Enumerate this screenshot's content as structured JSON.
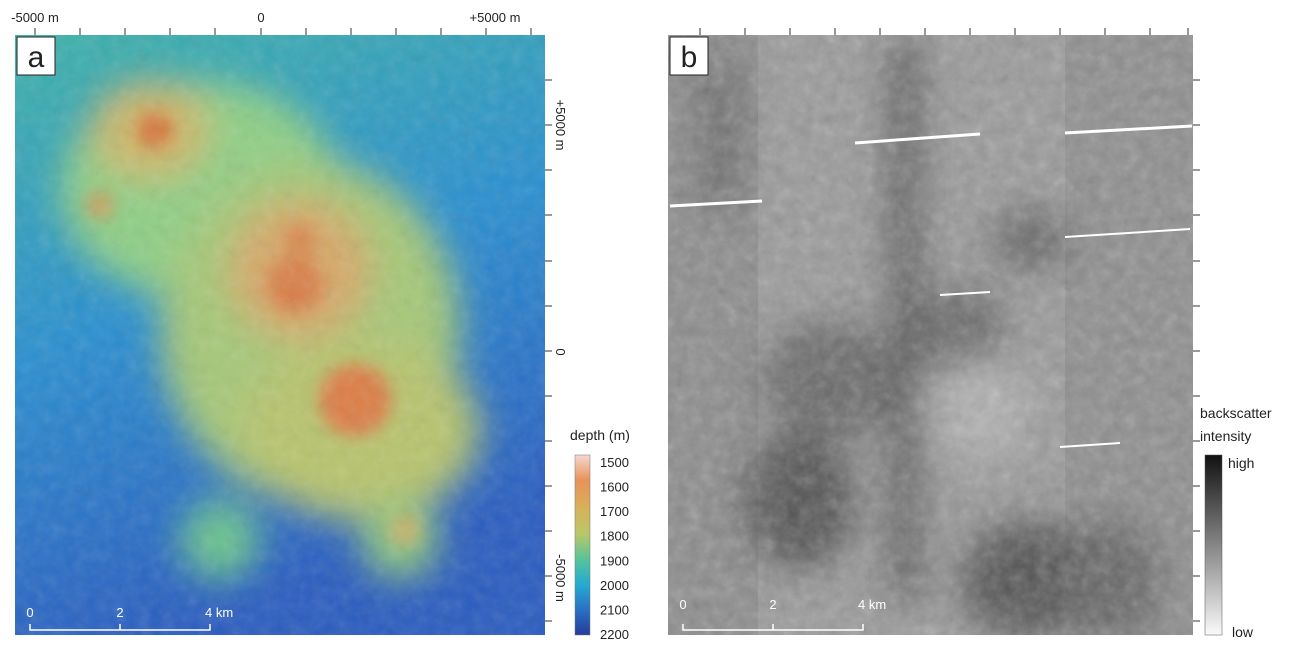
{
  "panel_a": {
    "label": "a",
    "top_axis": [
      "-5000 m",
      "0",
      "+5000 m"
    ],
    "right_axis": [
      "+5000 m",
      "0",
      "-5000 m"
    ],
    "scale_bar": [
      "0",
      "2",
      "4 km"
    ],
    "legend": {
      "title": "depth (m)",
      "values": [
        1500,
        1600,
        1700,
        1800,
        1900,
        2000,
        2100,
        2200
      ]
    }
  },
  "panel_b": {
    "label": "b",
    "scale_bar": [
      "0",
      "2",
      "4 km"
    ],
    "legend": {
      "title": [
        "backscatter",
        "intensity"
      ],
      "high": "high",
      "low": "low"
    }
  }
}
